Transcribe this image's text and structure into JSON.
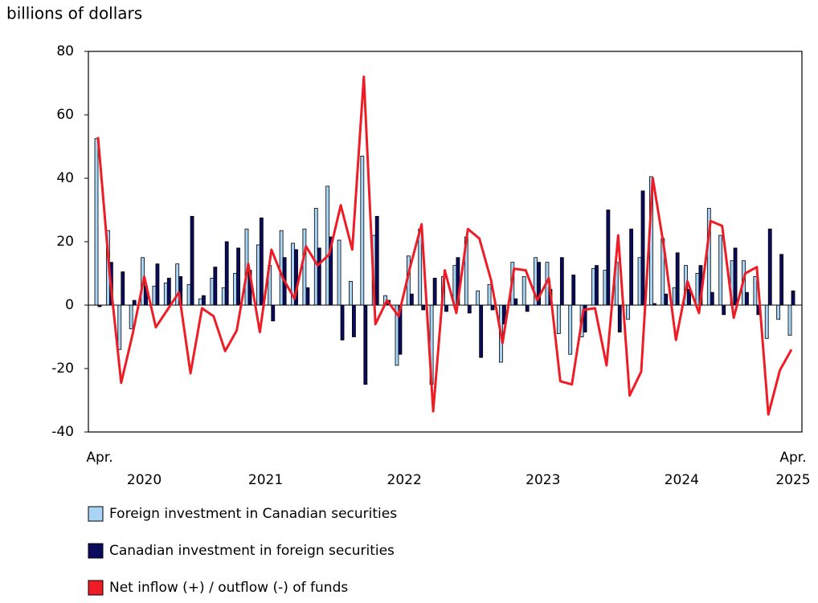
{
  "chart_data": {
    "type": "bar",
    "y_axis_label": "billions of dollars",
    "categories": [
      "Apr.",
      null,
      null,
      null,
      null,
      null,
      null,
      null,
      null,
      null,
      null,
      null,
      null,
      null,
      null,
      null,
      null,
      null,
      null,
      null,
      null,
      null,
      null,
      null,
      null,
      null,
      null,
      null,
      null,
      null,
      null,
      null,
      null,
      null,
      null,
      null,
      null,
      null,
      null,
      null,
      null,
      null,
      null,
      null,
      null,
      null,
      null,
      null,
      null,
      null,
      null,
      null,
      null,
      null,
      null,
      null,
      null,
      null,
      null,
      null,
      "Apr."
    ],
    "year_labels": [
      "2020",
      "2021",
      "2022",
      "2023",
      "2024",
      "2025"
    ],
    "series": [
      {
        "name": "Foreign investment in Canadian securities",
        "type": "bar",
        "color": "#a8d4f5",
        "values": [
          52.5,
          23.5,
          -14,
          -7.5,
          15,
          6,
          7,
          13,
          6.5,
          2,
          8.5,
          5.5,
          10,
          24,
          19,
          12.5,
          23.5,
          19.5,
          24,
          30.5,
          37.5,
          20.5,
          7.5,
          47,
          22,
          3,
          -19,
          15.5,
          24,
          -25,
          9,
          12.5,
          21.5,
          4.5,
          6.5,
          -18,
          13.5,
          9,
          15,
          13.5,
          -9,
          -15.5,
          -10,
          11.5,
          11,
          13.5,
          -4.5,
          15,
          40.5,
          21,
          5.5,
          12.5,
          10,
          30.5,
          22,
          14,
          14,
          9,
          -10.5,
          -4.5,
          -9.5
        ]
      },
      {
        "name": "Canadian investment in foreign securities",
        "type": "bar",
        "color": "#0b0b5e",
        "values": [
          -0.5,
          13.5,
          10.5,
          1.5,
          6,
          13,
          8.5,
          9,
          28,
          3,
          12,
          20,
          18,
          11,
          27.5,
          -5,
          15,
          17.5,
          5.5,
          18,
          21.5,
          -11,
          -10,
          -25,
          28,
          1.5,
          -15.5,
          3.5,
          -1.5,
          8.5,
          -2,
          15,
          -2.5,
          -16.5,
          -1.5,
          -6,
          2,
          -2,
          13.5,
          5,
          15,
          9.5,
          -8.5,
          12.5,
          30,
          -8.5,
          24,
          36,
          0.5,
          3.5,
          16.5,
          5,
          12.5,
          4,
          -3,
          18,
          4,
          -3,
          24,
          16,
          4.5
        ]
      },
      {
        "name": "Net inflow (+) / outflow (-) of funds",
        "type": "line",
        "color": "#ee1c25",
        "values": [
          53,
          10,
          -24.5,
          -9,
          9,
          -7,
          -1.5,
          4,
          -21.5,
          -1,
          -3.5,
          -14.5,
          -8,
          13,
          -8.5,
          17.5,
          8.5,
          2,
          18.5,
          12.5,
          16,
          31.5,
          17.5,
          72,
          -6,
          1.5,
          -3.5,
          12,
          25.5,
          -33.5,
          11,
          -2.5,
          24,
          21,
          8,
          -12,
          11.5,
          11,
          1.5,
          8.5,
          -24,
          -25,
          -1.5,
          -1,
          -19,
          22,
          -28.5,
          -21,
          40,
          17.5,
          -11,
          7.5,
          -2.5,
          26.5,
          25,
          -4,
          10,
          12,
          -34.5,
          -20.5,
          -14
        ]
      }
    ],
    "ylim": [
      -40,
      80
    ],
    "yticks": [
      -40,
      -20,
      0,
      20,
      40,
      60,
      80
    ]
  }
}
